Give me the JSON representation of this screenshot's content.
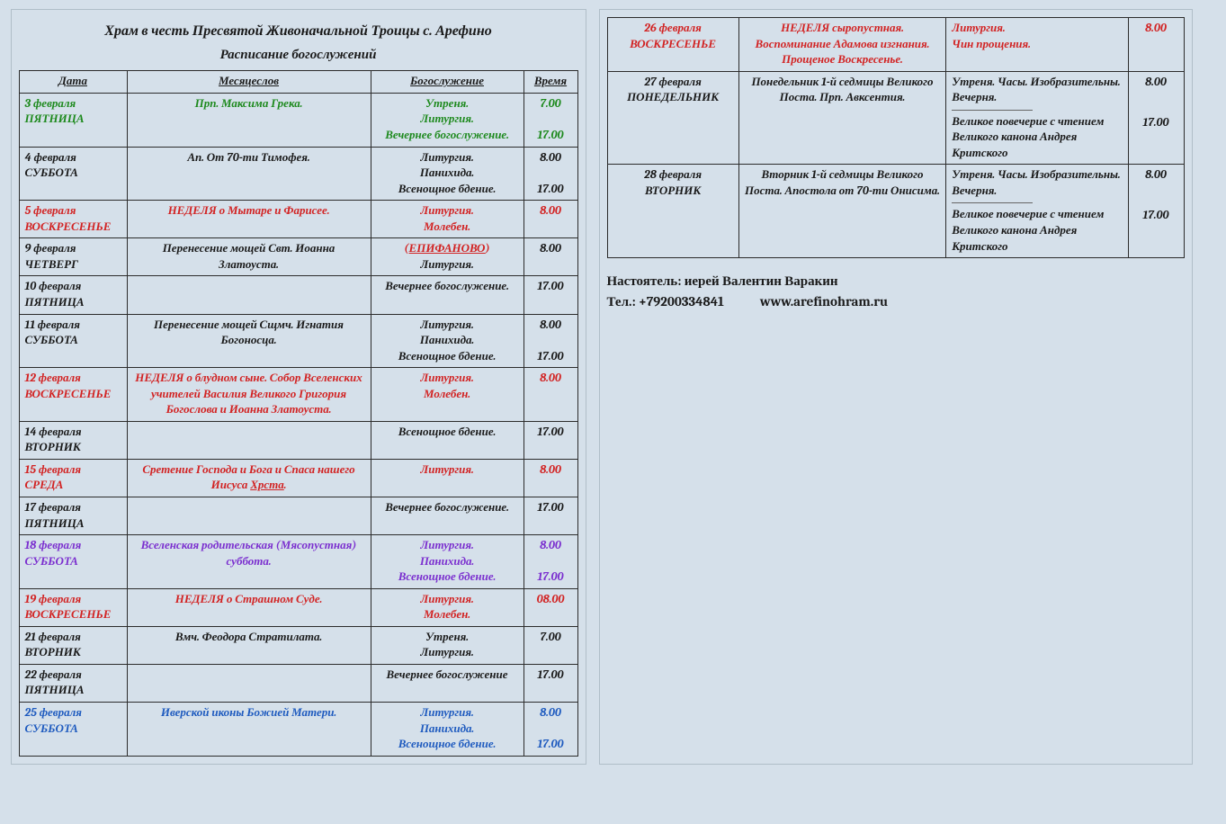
{
  "title": "Храм в честь Пресвятой Живоначальной Троицы с. Арефино",
  "subtitle": "Расписание богослужений",
  "headers": {
    "date": "Дата",
    "month": "Месяцеслов",
    "service": "Богослужение",
    "time": "Время"
  },
  "footer": {
    "priest": "Настоятель: иерей Валентин Варакин",
    "tel_label": "Тел.: ",
    "tel": "+79200334841",
    "site": "www.arefinohram.ru"
  },
  "left_rows": [
    {
      "color": "c-green",
      "date": "3 февраля\nПЯТНИЦА",
      "month": "Прп. Максима Грека.",
      "service": "Утреня.\nЛитургия.\nВечернее богослужение.",
      "time": [
        "7.00",
        "",
        "17.00"
      ]
    },
    {
      "color": "c-black",
      "date": "4 февраля\nСУББОТА",
      "month": "Ап. От 70-ти Тимофея.",
      "service": "Литургия.\nПанихида.\nВсенощное бдение.",
      "time": [
        "8.00",
        "",
        "17.00"
      ]
    },
    {
      "color": "c-red",
      "date": "5 февраля\nВОСКРЕСЕНЬЕ",
      "month": "НЕДЕЛЯ о Мытаре и Фарисее.",
      "service": "Литургия.\nМолебен.",
      "time": [
        "8.00"
      ]
    },
    {
      "color": "c-black",
      "date": "9 февраля\nЧЕТВЕРГ",
      "month": "Перенесение мощей Свт. Иоанна Златоуста.",
      "service_html": "<span class='c-red'>(</span><span style='text-decoration:underline' class='c-red'>ЕПИФАНОВО</span><span class='c-red'>)</span><br>Литургия.",
      "time": [
        "8.00"
      ]
    },
    {
      "color": "c-black",
      "date": "10 февраля\nПЯТНИЦА",
      "month": "",
      "service": "Вечернее богослужение.",
      "time": [
        "17.00"
      ]
    },
    {
      "color": "c-black",
      "date": "11 февраля\nСУББОТА",
      "month": "Перенесение мощей Сщмч. Игнатия Богоносца.",
      "service": "Литургия.\nПанихида.\nВсенощное бдение.",
      "time": [
        "8.00",
        "",
        "17.00"
      ]
    },
    {
      "color": "c-red",
      "date": "12 февраля\nВОСКРЕСЕНЬЕ",
      "month": "НЕДЕЛЯ о блудном сыне. Собор Вселенских учителей Василия Великого Григория Богослова и Иоанна Златоуста.",
      "service": "Литургия.\nМолебен.",
      "time": [
        "8.00"
      ]
    },
    {
      "color": "c-black",
      "date": "14  февраля\nВТОРНИК",
      "month": "",
      "service": "Всенощное бдение.",
      "time": [
        "17.00"
      ]
    },
    {
      "color": "c-red",
      "date": "15 февраля\nСРЕДА",
      "month_html": "Сретение Господа и Бога и Спаса нашего Иисуса <span style='text-decoration:underline'>Хрста</span>.",
      "service": "Литургия.",
      "time": [
        "8.00"
      ]
    },
    {
      "color": "c-black",
      "date": "17 февраля\nПЯТНИЦА",
      "month": "",
      "service": "Вечернее богослужение.",
      "time": [
        "17.00"
      ]
    },
    {
      "color": "c-purple",
      "date": "18 февраля\nСУББОТА",
      "month": "Вселенская родительская (Мясопустная) суббота.",
      "service": "Литургия.\nПанихида.\nВсенощное бдение.",
      "time": [
        "8.00",
        "",
        "17.00"
      ]
    },
    {
      "color": "c-red",
      "date": "19 февраля\nВОСКРЕСЕНЬЕ",
      "month": "НЕДЕЛЯ о Страшном Суде.",
      "service": "Литургия.\nМолебен.",
      "time": [
        "08.00"
      ]
    },
    {
      "color": "c-black",
      "date": "21 февраля\nВТОРНИК",
      "month": "Вмч. Феодора Стратилата.",
      "service": "Утреня.\nЛитургия.",
      "time": [
        "7.00"
      ]
    },
    {
      "color": "c-black",
      "date": "22 февраля\nПЯТНИЦА",
      "month": "",
      "service": "Вечернее богослужение",
      "time": [
        "17.00"
      ]
    },
    {
      "color": "c-blue",
      "date": "25 февраля\nСУББОТА",
      "month": "Иверской иконы Божией Матери.",
      "service": "Литургия.\nПанихида.\nВсенощное бдение.",
      "time": [
        "8.00",
        "",
        "17.00"
      ]
    }
  ],
  "right_rows": [
    {
      "color": "c-red",
      "date": "26 февраля\nВОСКРЕСЕНЬЕ",
      "month": "НЕДЕЛЯ сыропустная. Воспоминание Адамова изгнания. Прощеное Воскресенье.",
      "services": [
        {
          "text": "Литургия.\nЧин прощения.",
          "time": "8.00"
        }
      ]
    },
    {
      "color": "c-black",
      "date": "27 февраля\nПОНЕДЕЛЬНИК",
      "month": "Понедельник 1-й седмицы Великого Поста. Прп. Авксентия.",
      "services": [
        {
          "text": "Утреня. Часы. Изобразительны. Вечерня.",
          "time": "8.00"
        },
        {
          "sep": true
        },
        {
          "text": "Великое повечерие с чтением Великого канона Андрея Критского",
          "time": "17.00"
        }
      ]
    },
    {
      "color": "c-black",
      "date": "28  февраля\nВТОРНИК",
      "month": "Вторник 1-й седмицы Великого Поста. Апостола от 70-ти Онисима.",
      "services": [
        {
          "text": "Утреня. Часы. Изобразительны. Вечерня.",
          "time": "8.00"
        },
        {
          "sep": true
        },
        {
          "text": "Великое повечерие с чтением Великого канона Андрея Критского",
          "time": "17.00"
        }
      ]
    }
  ],
  "colors": {
    "bg": "#d5e0ea",
    "border": "#2c2c2c",
    "green": "#1e8a1e",
    "red": "#d22323",
    "black": "#1a1a1a",
    "purple": "#7b2fcf",
    "blue": "#1f5bbf"
  }
}
